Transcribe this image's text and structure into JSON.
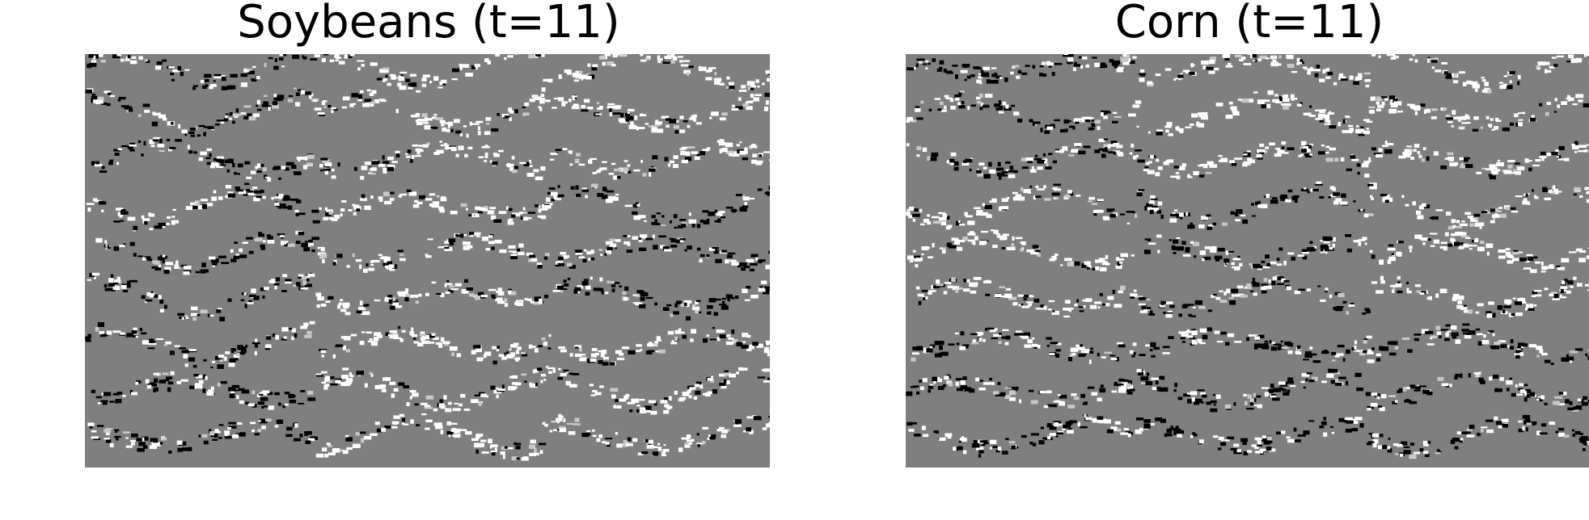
{
  "panels": [
    {
      "title": "Soybeans (t=11)",
      "image_kind": "crop-prediction-grid",
      "seed": 7
    },
    {
      "title": "Corn (t=11)",
      "image_kind": "crop-prediction-grid",
      "seed": 19
    }
  ],
  "colors": {
    "background": "#7f7f7f",
    "light": "#ffffff",
    "dark": "#000000",
    "mid_light": "#c8c8c8",
    "mid_dark": "#3c3c3c"
  }
}
